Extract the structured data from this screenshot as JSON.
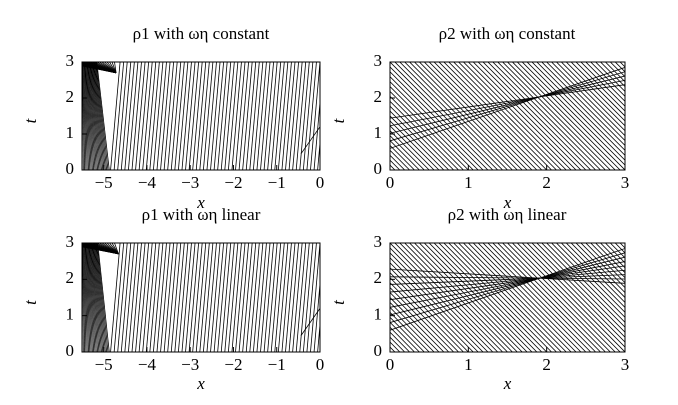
{
  "chart_data": [
    {
      "type": "line",
      "title": "ρ1 with ωη constant",
      "xlabel": "x",
      "ylabel": "t",
      "xlim": [
        -5.5,
        0
      ],
      "ylim": [
        0,
        3
      ],
      "xticks": [
        {
          "value": -5,
          "label": "−5"
        },
        {
          "value": -4,
          "label": "−4"
        },
        {
          "value": -3,
          "label": "−3"
        },
        {
          "value": -2,
          "label": "−2"
        },
        {
          "value": -1,
          "label": "−1"
        },
        0
      ],
      "yticks": [
        0,
        1,
        2,
        3
      ]
    },
    {
      "type": "line",
      "title": "ρ2 with ωη constant",
      "xlabel": "x",
      "ylabel": "t",
      "xlim": [
        0,
        3
      ],
      "ylim": [
        0,
        3
      ],
      "xticks": [
        0,
        1,
        2,
        3
      ],
      "yticks": [
        0,
        1,
        2,
        3
      ]
    },
    {
      "type": "line",
      "title": "ρ1 with ωη linear",
      "xlabel": "x",
      "ylabel": "t",
      "xlim": [
        -5.5,
        0
      ],
      "ylim": [
        0,
        3
      ],
      "xticks": [
        {
          "value": -5,
          "label": "−5"
        },
        {
          "value": -4,
          "label": "−4"
        },
        {
          "value": -3,
          "label": "−3"
        },
        {
          "value": -2,
          "label": "−2"
        },
        {
          "value": -1,
          "label": "−1"
        },
        0
      ],
      "yticks": [
        0,
        1,
        2,
        3
      ]
    },
    {
      "type": "line",
      "title": "ρ2 with ωη linear",
      "xlabel": "x",
      "ylabel": "t",
      "xlim": [
        0,
        3
      ],
      "ylim": [
        0,
        3
      ],
      "xticks": [
        0,
        1,
        2,
        3
      ],
      "yticks": [
        0,
        1,
        2,
        3
      ]
    }
  ]
}
